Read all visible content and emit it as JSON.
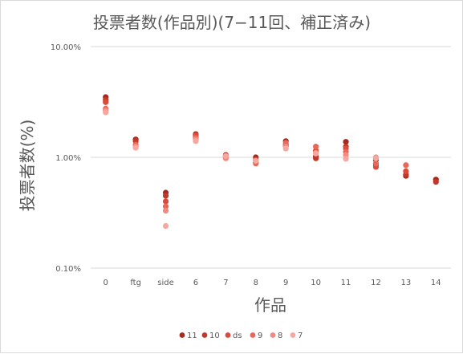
{
  "chart_data": {
    "type": "scatter",
    "title": "投票者数(作品別)(7−11回、補正済み)",
    "xlabel": "作品",
    "ylabel": "投票者数(%)",
    "y_scale": "log",
    "ylim": [
      0.1,
      10
    ],
    "y_ticks": [
      "10.00%",
      "1.00%",
      "0.10%"
    ],
    "y_tick_values": [
      10,
      1,
      0.1
    ],
    "categories": [
      "0",
      "ftg",
      "side",
      "6",
      "7",
      "8",
      "9",
      "10",
      "11",
      "12",
      "13",
      "14"
    ],
    "grid": true,
    "legend_position": "bottom",
    "series": [
      {
        "name": "11",
        "color": "#a52a1c",
        "values": [
          3.5,
          1.45,
          0.48,
          1.62,
          1.05,
          1.0,
          1.4,
          1.02,
          1.38,
          0.95,
          0.68,
          0.63
        ]
      },
      {
        "name": "10",
        "color": "#c0392b",
        "values": [
          3.3,
          1.4,
          0.45,
          1.55,
          1.02,
          0.9,
          1.3,
          0.98,
          1.25,
          0.85,
          0.7,
          0.6
        ]
      },
      {
        "name": "ds",
        "color": "#d94c3c",
        "values": [
          3.15,
          null,
          0.4,
          1.58,
          null,
          0.95,
          1.27,
          1.15,
          1.2,
          0.82,
          0.75,
          null
        ]
      },
      {
        "name": "9",
        "color": "#e8675a",
        "values": [
          2.75,
          1.3,
          0.36,
          1.5,
          1.0,
          0.88,
          1.35,
          1.25,
          1.12,
          0.88,
          0.85,
          null
        ]
      },
      {
        "name": "8",
        "color": "#f08b80",
        "values": [
          2.65,
          1.25,
          0.33,
          1.45,
          0.98,
          null,
          1.25,
          1.1,
          1.05,
          1.0,
          null,
          null
        ]
      },
      {
        "name": "7",
        "color": "#f5a8a0",
        "values": [
          2.55,
          1.22,
          0.24,
          1.4,
          1.03,
          0.93,
          1.2,
          1.08,
          0.97,
          0.98,
          null,
          null
        ]
      }
    ]
  }
}
